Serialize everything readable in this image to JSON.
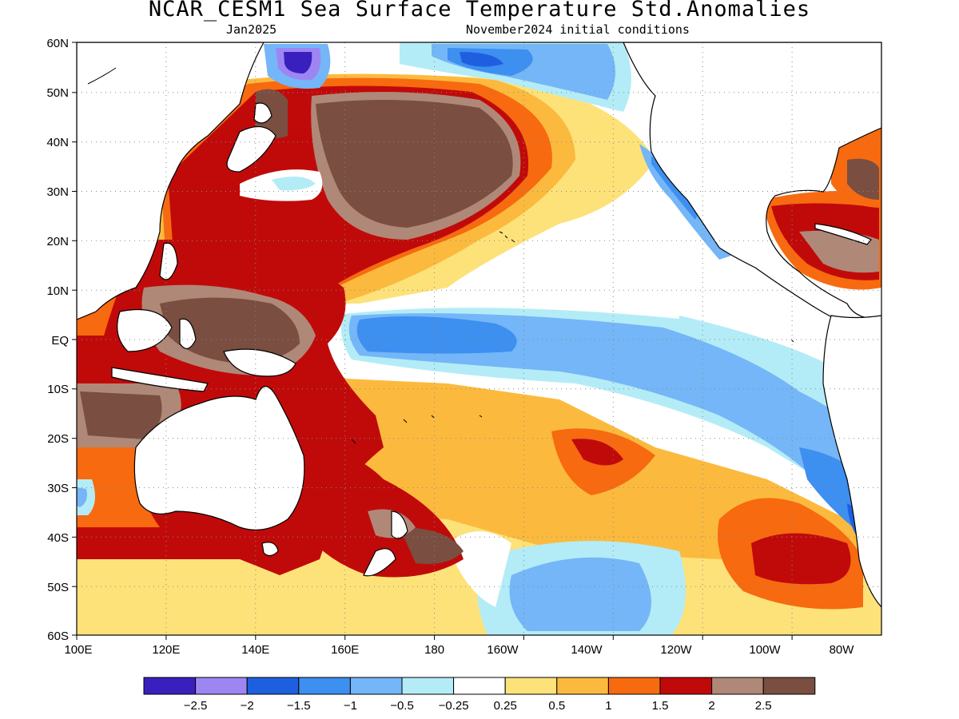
{
  "title": "NCAR_CESM1 Sea Surface Temperature Std.Anomalies",
  "subtitle_left": "Jan2025",
  "subtitle_right": "November2024 initial conditions",
  "map": {
    "lat_labels": [
      "60N",
      "50N",
      "40N",
      "30N",
      "20N",
      "10N",
      "EQ",
      "10S",
      "20S",
      "30S",
      "40S",
      "50S",
      "60S"
    ],
    "lon_labels": [
      "100E",
      "120E",
      "140E",
      "160E",
      "180",
      "160W",
      "140W",
      "120W",
      "100W",
      "80W"
    ],
    "gridlines": true
  },
  "colorbar": {
    "colors": [
      "#3a1fbf",
      "#9d86f2",
      "#1e5fe0",
      "#3d8ff0",
      "#74b6f7",
      "#b3ecf7",
      "#ffffff",
      "#fde27a",
      "#fbba3e",
      "#f76a10",
      "#c00a0a",
      "#b08878",
      "#7a4e40"
    ],
    "labels": [
      "-2.5",
      "-2",
      "-1.5",
      "-1",
      "-0.5",
      "-0.25",
      "0.25",
      "0.5",
      "1",
      "1.5",
      "2",
      "2.5"
    ]
  }
}
